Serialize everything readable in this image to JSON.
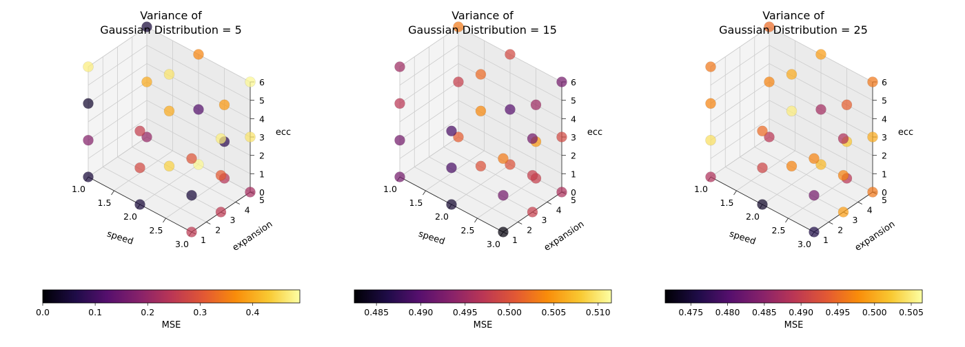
{
  "chart_data": [
    {
      "type": "scatter3d",
      "title": "Variance of\nGaussian Distribution = 5",
      "xlabel": "speed",
      "ylabel": "expansion",
      "zlabel": "ecc",
      "xlim": [
        1,
        3
      ],
      "ylim": [
        1,
        5
      ],
      "zlim": [
        0,
        6
      ],
      "xticks": [
        "1.0",
        "1.5",
        "2.0",
        "2.5",
        "3.0"
      ],
      "yticks": [
        "1",
        "2",
        "3",
        "4",
        "5"
      ],
      "zticks": [
        "0",
        "1",
        "2",
        "3",
        "4",
        "5",
        "6"
      ],
      "colorbar": {
        "label": "MSE",
        "min": 0.0,
        "max": 0.49,
        "ticks": [
          "0.0",
          "0.1",
          "0.2",
          "0.3",
          "0.4"
        ],
        "tickvals": [
          0.0,
          0.1,
          0.2,
          0.3,
          0.4
        ],
        "colormap": "inferno"
      },
      "points": [
        {
          "x": 1,
          "y": 1,
          "z": 0,
          "v": 0.05
        },
        {
          "x": 1,
          "y": 1,
          "z": 2,
          "v": 0.18
        },
        {
          "x": 1,
          "y": 1,
          "z": 4,
          "v": 0.04
        },
        {
          "x": 1,
          "y": 1,
          "z": 6,
          "v": 0.47
        },
        {
          "x": 1,
          "y": 5,
          "z": 0,
          "v": 0.2
        },
        {
          "x": 1,
          "y": 5,
          "z": 3,
          "v": 0.4
        },
        {
          "x": 1,
          "y": 5,
          "z": 6,
          "v": 0.05
        },
        {
          "x": 2,
          "y": 1,
          "z": 0,
          "v": 0.05
        },
        {
          "x": 2,
          "y": 1,
          "z": 2,
          "v": 0.28
        },
        {
          "x": 2,
          "y": 1,
          "z": 4,
          "v": 0.26
        },
        {
          "x": 2,
          "y": 5,
          "z": 0,
          "v": 0.48
        },
        {
          "x": 2,
          "y": 5,
          "z": 3,
          "v": 0.12
        },
        {
          "x": 2,
          "y": 5,
          "z": 6,
          "v": 0.36
        },
        {
          "x": 3,
          "y": 1,
          "z": 0,
          "v": 0.25
        },
        {
          "x": 3,
          "y": 1,
          "z": 2,
          "v": 0.05
        },
        {
          "x": 3,
          "y": 1,
          "z": 4,
          "v": 0.3
        },
        {
          "x": 3,
          "y": 3,
          "z": 0,
          "v": 0.25
        },
        {
          "x": 3,
          "y": 3,
          "z": 2,
          "v": 0.31
        },
        {
          "x": 3,
          "y": 3,
          "z": 4,
          "v": 0.47
        },
        {
          "x": 3,
          "y": 5,
          "z": 0,
          "v": 0.22
        },
        {
          "x": 3,
          "y": 5,
          "z": 3,
          "v": 0.46
        },
        {
          "x": 3,
          "y": 5,
          "z": 6,
          "v": 0.48
        },
        {
          "x": 2,
          "y": 3,
          "z": 1,
          "v": 0.44
        },
        {
          "x": 2,
          "y": 3,
          "z": 4,
          "v": 0.4
        },
        {
          "x": 2,
          "y": 3,
          "z": 6,
          "v": 0.46
        },
        {
          "x": 2.5,
          "y": 5,
          "z": 0,
          "v": 0.24
        },
        {
          "x": 2.5,
          "y": 5,
          "z": 2,
          "v": 0.08
        },
        {
          "x": 2.5,
          "y": 5,
          "z": 4,
          "v": 0.38
        }
      ]
    },
    {
      "type": "scatter3d",
      "title": "Variance of\nGaussian Distribution = 15",
      "xlabel": "speed",
      "ylabel": "expansion",
      "zlabel": "ecc",
      "xlim": [
        1,
        3
      ],
      "ylim": [
        1,
        5
      ],
      "zlim": [
        0,
        6
      ],
      "xticks": [
        "1.0",
        "1.5",
        "2.0",
        "2.5",
        "3.0"
      ],
      "yticks": [
        "1",
        "2",
        "3",
        "4",
        "5"
      ],
      "zticks": [
        "0",
        "1",
        "2",
        "3",
        "4",
        "5",
        "6"
      ],
      "colorbar": {
        "label": "MSE",
        "min": 0.4825,
        "max": 0.5115,
        "ticks": [
          "0.485",
          "0.490",
          "0.495",
          "0.500",
          "0.505",
          "0.510"
        ],
        "tickvals": [
          0.485,
          0.49,
          0.495,
          0.5,
          0.505,
          0.51
        ],
        "colormap": "inferno"
      },
      "points": [
        {
          "x": 1,
          "y": 1,
          "z": 0,
          "v": 0.492
        },
        {
          "x": 1,
          "y": 1,
          "z": 2,
          "v": 0.492
        },
        {
          "x": 1,
          "y": 1,
          "z": 4,
          "v": 0.497
        },
        {
          "x": 1,
          "y": 1,
          "z": 6,
          "v": 0.495
        },
        {
          "x": 1,
          "y": 5,
          "z": 0,
          "v": 0.501
        },
        {
          "x": 1,
          "y": 5,
          "z": 3,
          "v": 0.498
        },
        {
          "x": 1,
          "y": 5,
          "z": 6,
          "v": 0.503
        },
        {
          "x": 2,
          "y": 1,
          "z": 0,
          "v": 0.485
        },
        {
          "x": 2,
          "y": 1,
          "z": 2,
          "v": 0.489
        },
        {
          "x": 2,
          "y": 1,
          "z": 4,
          "v": 0.489
        },
        {
          "x": 2,
          "y": 5,
          "z": 0,
          "v": 0.5
        },
        {
          "x": 2,
          "y": 5,
          "z": 3,
          "v": 0.49
        },
        {
          "x": 2,
          "y": 5,
          "z": 6,
          "v": 0.499
        },
        {
          "x": 3,
          "y": 1,
          "z": 0,
          "v": 0.483
        },
        {
          "x": 3,
          "y": 1,
          "z": 2,
          "v": 0.492
        },
        {
          "x": 3,
          "y": 1,
          "z": 4,
          "v": 0.503
        },
        {
          "x": 3,
          "y": 3,
          "z": 0,
          "v": 0.498
        },
        {
          "x": 3,
          "y": 3,
          "z": 2,
          "v": 0.498
        },
        {
          "x": 3,
          "y": 3,
          "z": 4,
          "v": 0.492
        },
        {
          "x": 3,
          "y": 5,
          "z": 0,
          "v": 0.496
        },
        {
          "x": 3,
          "y": 5,
          "z": 3,
          "v": 0.499
        },
        {
          "x": 3,
          "y": 5,
          "z": 6,
          "v": 0.492
        },
        {
          "x": 2,
          "y": 3,
          "z": 1,
          "v": 0.5
        },
        {
          "x": 2,
          "y": 3,
          "z": 4,
          "v": 0.504
        },
        {
          "x": 2,
          "y": 3,
          "z": 6,
          "v": 0.502
        },
        {
          "x": 2.5,
          "y": 5,
          "z": 0,
          "v": 0.498
        },
        {
          "x": 2.5,
          "y": 5,
          "z": 2,
          "v": 0.505
        },
        {
          "x": 2.5,
          "y": 5,
          "z": 4,
          "v": 0.495
        }
      ]
    },
    {
      "type": "scatter3d",
      "title": "Variance of\nGaussian Distribution = 25",
      "xlabel": "speed",
      "ylabel": "expansion",
      "zlabel": "ecc",
      "xlim": [
        1,
        3
      ],
      "ylim": [
        1,
        5
      ],
      "zlim": [
        0,
        6
      ],
      "xticks": [
        "1.0",
        "1.5",
        "2.0",
        "2.5",
        "3.0"
      ],
      "yticks": [
        "1",
        "2",
        "3",
        "4",
        "5"
      ],
      "zticks": [
        "0",
        "1",
        "2",
        "3",
        "4",
        "5",
        "6"
      ],
      "colorbar": {
        "label": "MSE",
        "min": 0.4715,
        "max": 0.5065,
        "ticks": [
          "0.475",
          "0.480",
          "0.485",
          "0.490",
          "0.495",
          "0.500",
          "0.505"
        ],
        "tickvals": [
          0.475,
          0.48,
          0.485,
          0.49,
          0.495,
          0.5,
          0.505
        ],
        "colormap": "inferno"
      },
      "points": [
        {
          "x": 1,
          "y": 1,
          "z": 0,
          "v": 0.488
        },
        {
          "x": 1,
          "y": 1,
          "z": 2,
          "v": 0.504
        },
        {
          "x": 1,
          "y": 1,
          "z": 4,
          "v": 0.497
        },
        {
          "x": 1,
          "y": 1,
          "z": 6,
          "v": 0.496
        },
        {
          "x": 1,
          "y": 5,
          "z": 0,
          "v": 0.489
        },
        {
          "x": 1,
          "y": 5,
          "z": 3,
          "v": 0.497
        },
        {
          "x": 1,
          "y": 5,
          "z": 6,
          "v": 0.495
        },
        {
          "x": 2,
          "y": 1,
          "z": 0,
          "v": 0.474
        },
        {
          "x": 2,
          "y": 1,
          "z": 2,
          "v": 0.491
        },
        {
          "x": 2,
          "y": 1,
          "z": 4,
          "v": 0.495
        },
        {
          "x": 2,
          "y": 5,
          "z": 0,
          "v": 0.501
        },
        {
          "x": 2,
          "y": 5,
          "z": 3,
          "v": 0.487
        },
        {
          "x": 2,
          "y": 5,
          "z": 6,
          "v": 0.499
        },
        {
          "x": 3,
          "y": 1,
          "z": 0,
          "v": 0.476
        },
        {
          "x": 3,
          "y": 1,
          "z": 2,
          "v": 0.483
        },
        {
          "x": 3,
          "y": 1,
          "z": 4,
          "v": 0.497
        },
        {
          "x": 3,
          "y": 3,
          "z": 0,
          "v": 0.499
        },
        {
          "x": 3,
          "y": 3,
          "z": 2,
          "v": 0.497
        },
        {
          "x": 3,
          "y": 3,
          "z": 4,
          "v": 0.488
        },
        {
          "x": 3,
          "y": 5,
          "z": 0,
          "v": 0.496
        },
        {
          "x": 3,
          "y": 5,
          "z": 3,
          "v": 0.5
        },
        {
          "x": 3,
          "y": 5,
          "z": 6,
          "v": 0.496
        },
        {
          "x": 2,
          "y": 3,
          "z": 1,
          "v": 0.497
        },
        {
          "x": 2,
          "y": 3,
          "z": 4,
          "v": 0.505
        },
        {
          "x": 2,
          "y": 3,
          "z": 6,
          "v": 0.5
        },
        {
          "x": 2.5,
          "y": 5,
          "z": 0,
          "v": 0.489
        },
        {
          "x": 2.5,
          "y": 5,
          "z": 2,
          "v": 0.502
        },
        {
          "x": 2.5,
          "y": 5,
          "z": 4,
          "v": 0.494
        }
      ]
    }
  ]
}
